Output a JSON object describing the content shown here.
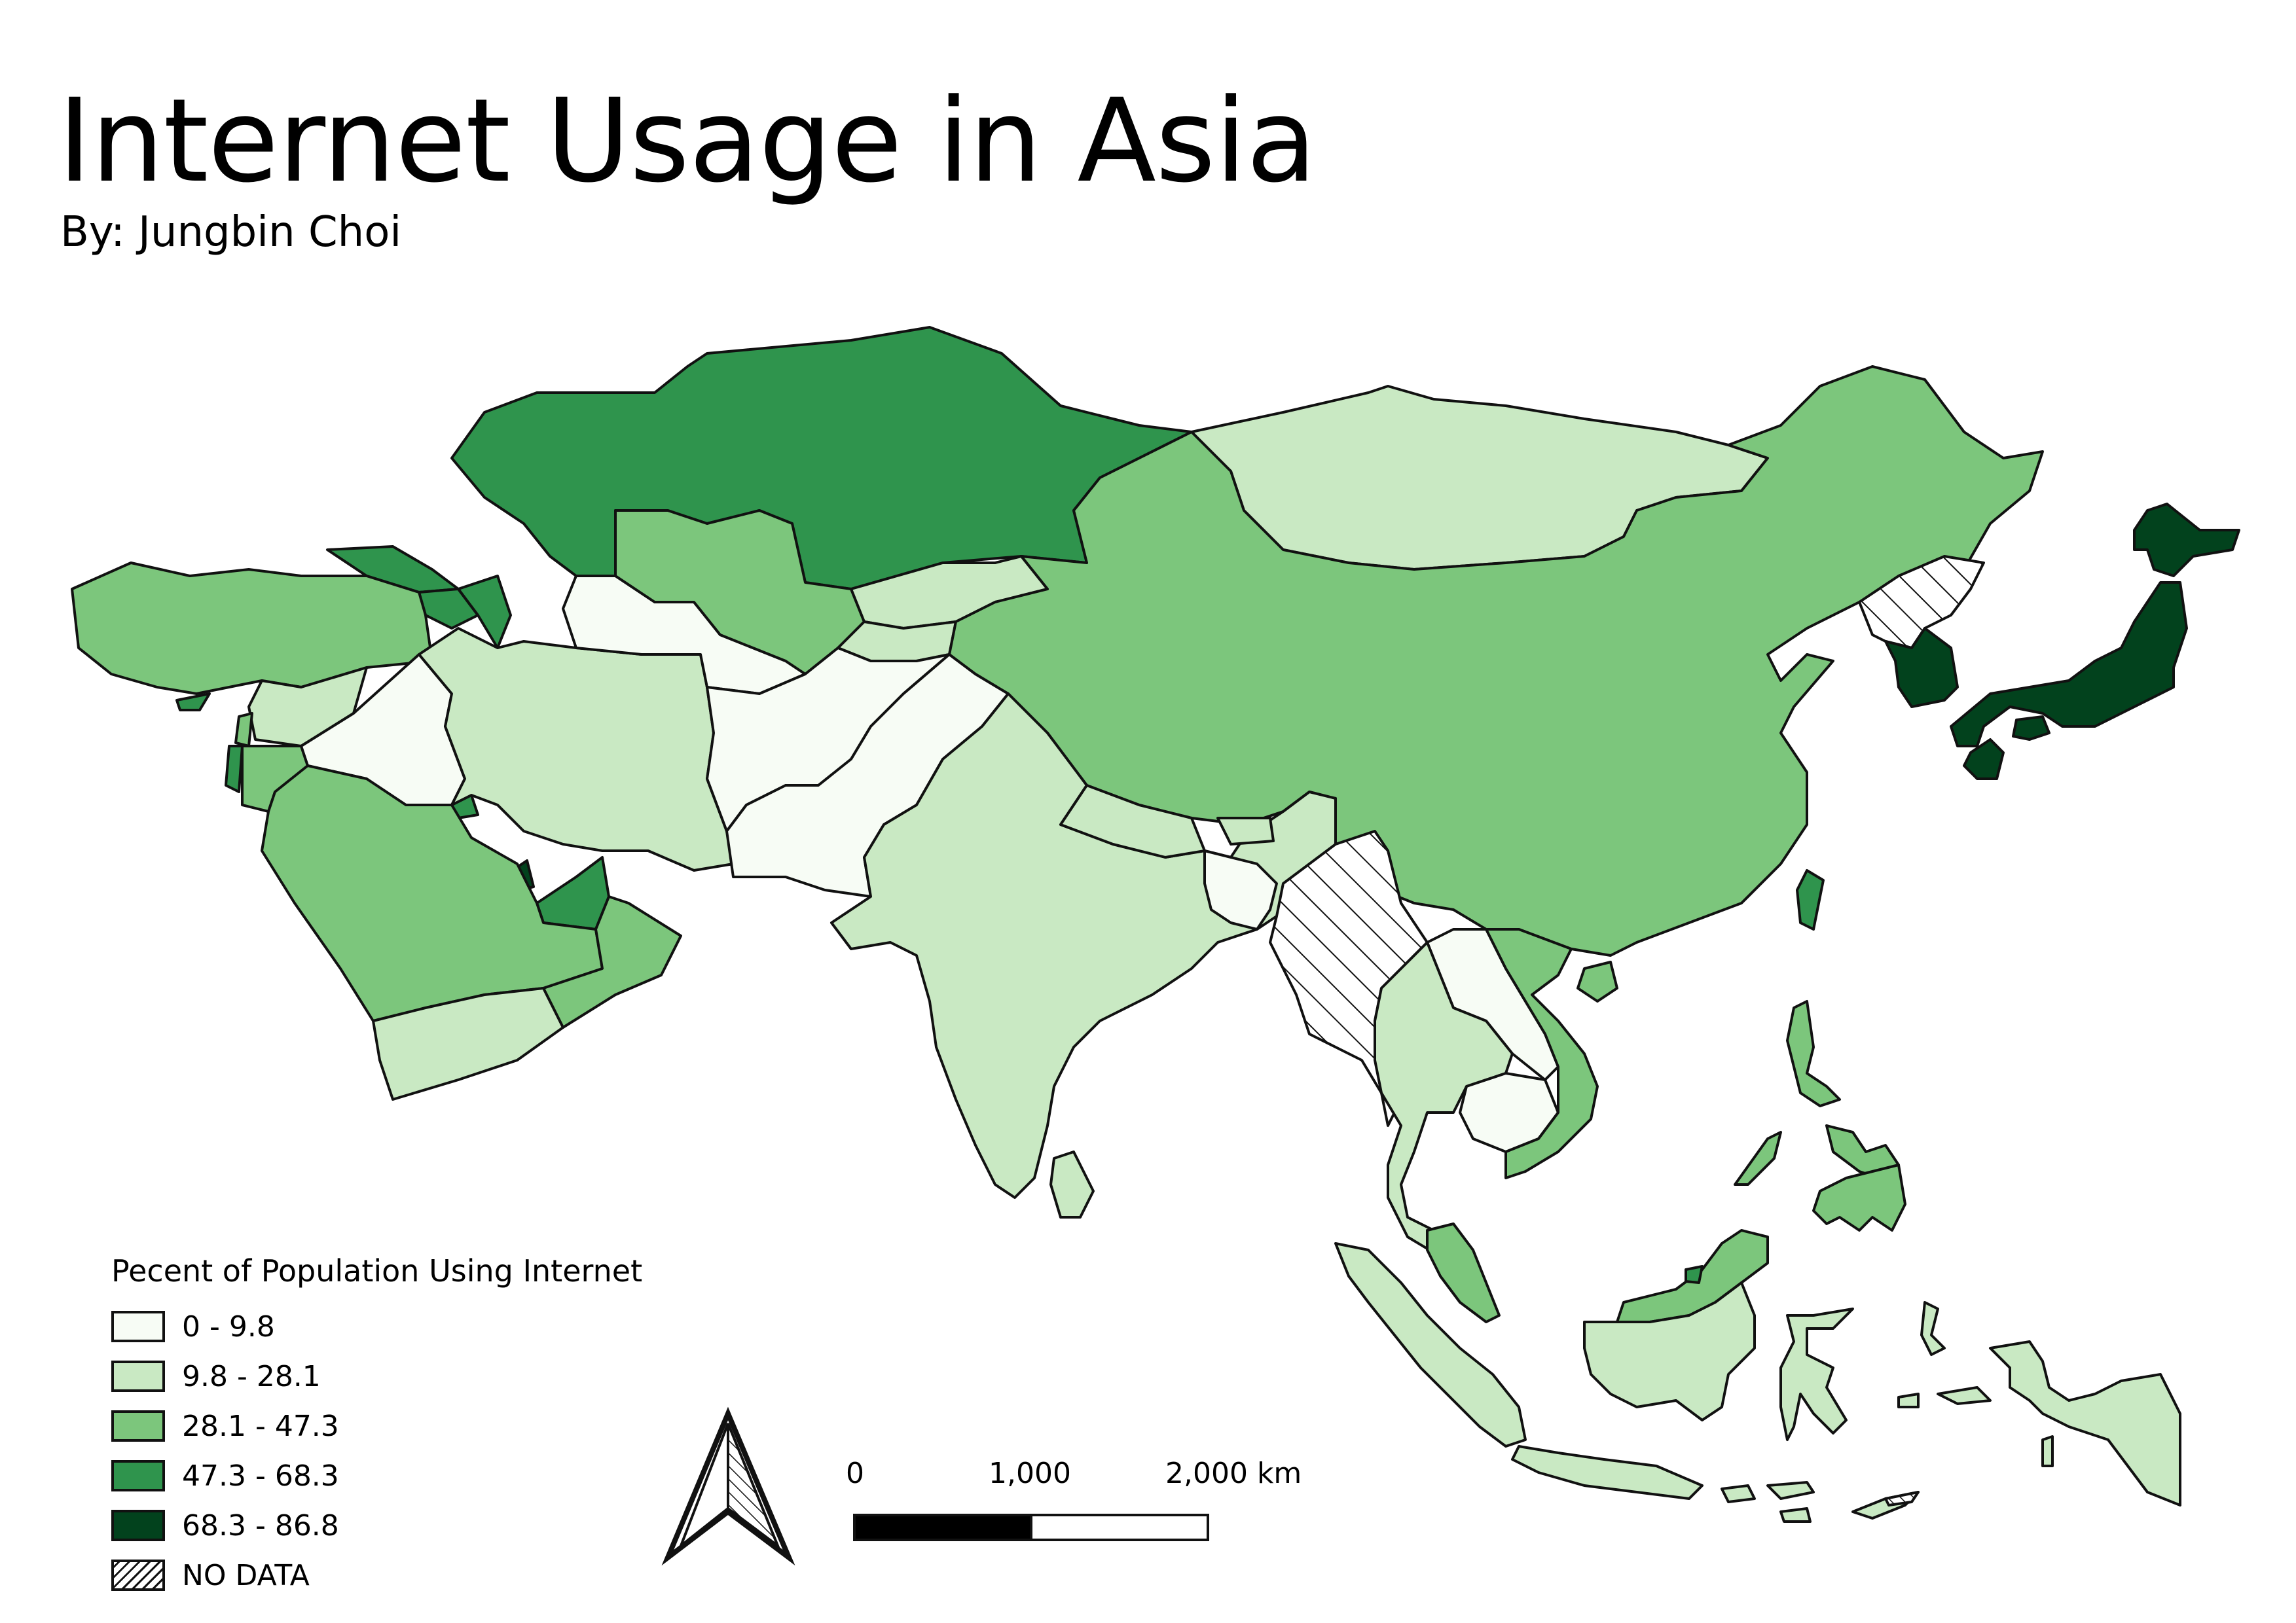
{
  "title": "Internet Usage in Asia",
  "subtitle": "By: Jungbin Choi",
  "legend": {
    "title": "Pecent of Population Using Internet",
    "classes": [
      {
        "label": "0 - 9.8",
        "color": "#f7fcf5"
      },
      {
        "label": "9.8 - 28.1",
        "color": "#c9e9c3"
      },
      {
        "label": "28.1 - 47.3",
        "color": "#7cc67c"
      },
      {
        "label": "47.3 - 68.3",
        "color": "#2f944d"
      },
      {
        "label": "68.3 - 86.8",
        "color": "#02421d"
      },
      {
        "label": "NO DATA",
        "color": "hatched"
      }
    ]
  },
  "scale_bar": {
    "labels": [
      "0",
      "1,000",
      "2,000 km"
    ]
  },
  "north_arrow": {
    "icon": "north-arrow-icon"
  }
}
